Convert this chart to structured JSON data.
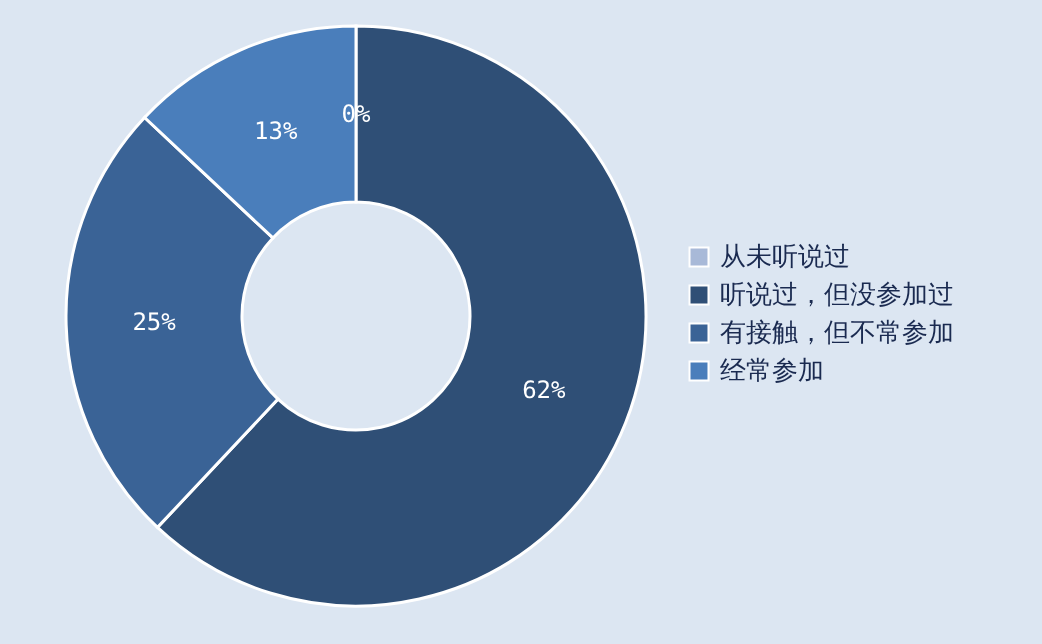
{
  "chart_data": {
    "type": "donut",
    "categories": [
      "从未听说过",
      "听说过，但没参加过",
      "有接触，但不常参加",
      "经常参加"
    ],
    "values": [
      0,
      62,
      25,
      13
    ],
    "colors": [
      "#a8b9d8",
      "#2f4f76",
      "#3a6396",
      "#4a7ebb"
    ],
    "value_labels": [
      "0%",
      "62%",
      "25%",
      "13%"
    ],
    "legend": "right"
  }
}
